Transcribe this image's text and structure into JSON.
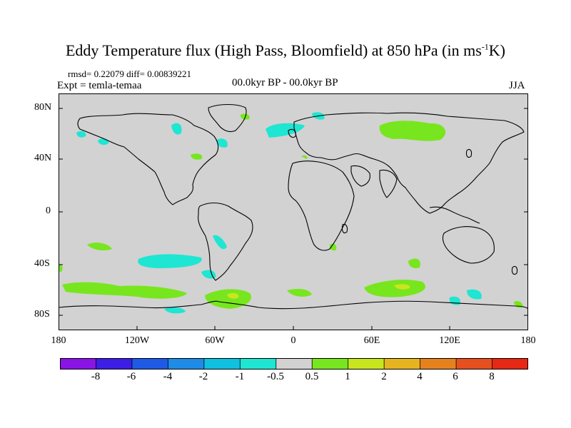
{
  "title": {
    "main": "Eddy Temperature flux (High Pass, Bloomfield) at 850 hPa (in ms",
    "sup": "-1",
    "tail": "K)"
  },
  "stats": "rmsd= 0.22079 diff= 0.00839221",
  "experiment": "Expt = temla-temaa",
  "period": "00.0kyr BP - 00.0kyr BP",
  "season": "JJA",
  "lat_labels": [
    "80N",
    "40N",
    "0",
    "40S",
    "80S"
  ],
  "lon_labels": [
    "180",
    "120W",
    "60W",
    "0",
    "60E",
    "120E",
    "180"
  ],
  "colorbar": {
    "labels": [
      "-8",
      "-6",
      "-4",
      "-2",
      "-1",
      "-0.5",
      "0.5",
      "1",
      "2",
      "4",
      "6",
      "8"
    ],
    "colors": [
      "#8a14e6",
      "#3c1ee6",
      "#1e5ae6",
      "#1e8ce6",
      "#10c0e0",
      "#1ee6d2",
      "#d2d2d2",
      "#78e61e",
      "#c8e61e",
      "#e6b41e",
      "#e6821e",
      "#e6501e",
      "#e62814"
    ]
  },
  "colors": {
    "ocean_land_bg": "#d2d2d2",
    "positive_anomaly": "#78e61e",
    "negative_anomaly": "#1ee6d2",
    "strong_positive": "#c8e61e",
    "coastline": "#000000"
  }
}
